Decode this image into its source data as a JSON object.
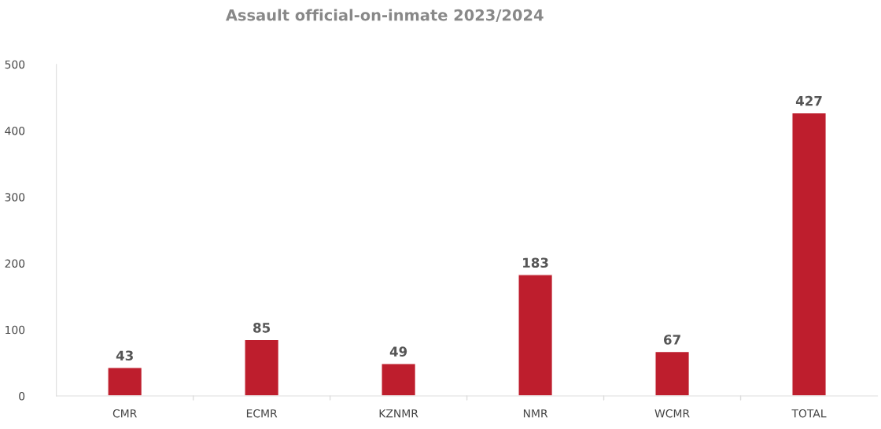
{
  "chart_data": {
    "type": "bar",
    "title": "Assault official-on-inmate 2023/2024",
    "categories": [
      "CMR",
      "ECMR",
      "KZNMR",
      "NMR",
      "WCMR",
      "TOTAL"
    ],
    "values": [
      43,
      85,
      49,
      183,
      67,
      427
    ],
    "color": "#be1e2d",
    "ylim": [
      0,
      500
    ],
    "yticks": [
      0,
      100,
      200,
      300,
      400,
      500
    ],
    "grid": false,
    "data_labels": true
  }
}
